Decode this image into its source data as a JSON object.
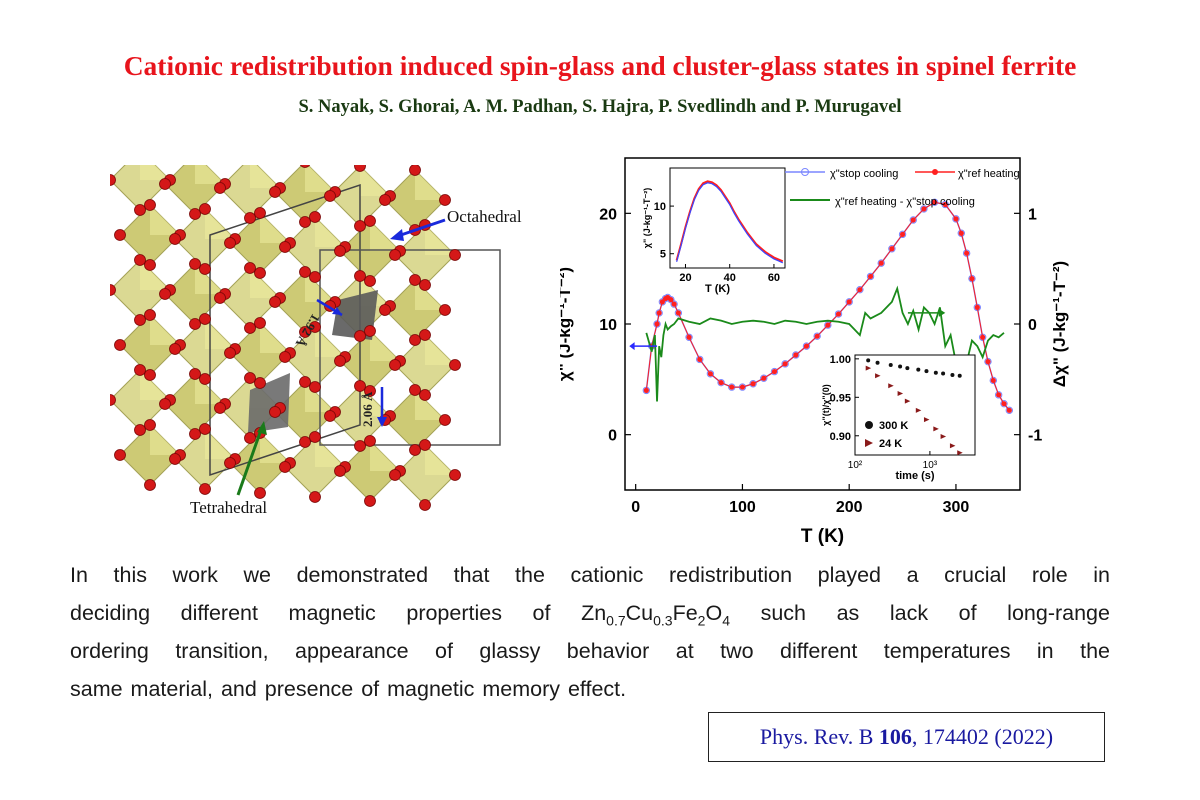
{
  "title": "Cationic redistribution induced spin-glass and cluster-glass states in spinel ferrite",
  "authors": "S. Nayak, S. Ghorai, A. M. Padhan, S. Hajra, P. Svedlindh and P. Murugavel",
  "figure": {
    "structure": {
      "octahedral_label": "Octahedral",
      "tetrahedral_label": "Tetrahedral",
      "bond1": "1.92 Å",
      "bond2": "2.06 Å"
    }
  },
  "chart_data": {
    "type": "line",
    "xlabel": "T (K)",
    "ylabel": "χ\" (J-kg⁻¹-T⁻²)",
    "y2label": "Δχ\" (J-kg⁻¹-T⁻²)",
    "x_ticks": [
      "0",
      "100",
      "200",
      "300"
    ],
    "y_ticks": [
      "0",
      "10",
      "20"
    ],
    "y2_ticks": [
      "-1",
      "0",
      "1"
    ],
    "xlim": [
      -10,
      360
    ],
    "ylim": [
      -5,
      25
    ],
    "y2lim": [
      -1.5,
      1.5
    ],
    "legend": [
      "χ\"stop cooling",
      "χ\"ref heating",
      "χ\"ref heating - χ\"stop cooling"
    ],
    "legend_placement": "top-right",
    "colors": {
      "stop_cooling": "#7a86ff",
      "ref_heating": "#ff2020",
      "difference": "#1a8a1a"
    },
    "series": [
      {
        "name": "χ\"stop cooling",
        "axis": "left",
        "x": [
          10,
          15,
          20,
          22,
          25,
          28,
          30,
          33,
          36,
          40,
          50,
          60,
          70,
          80,
          90,
          100,
          110,
          120,
          130,
          140,
          150,
          160,
          170,
          180,
          190,
          200,
          210,
          220,
          230,
          240,
          250,
          260,
          270,
          280,
          290,
          300,
          305,
          310,
          315,
          320,
          325,
          330,
          335,
          340,
          345,
          350
        ],
        "y": [
          4,
          8,
          10,
          11,
          12,
          12.3,
          12.4,
          12.2,
          11.8,
          11,
          8.8,
          6.8,
          5.5,
          4.7,
          4.3,
          4.3,
          4.6,
          5.1,
          5.7,
          6.4,
          7.2,
          8,
          8.9,
          9.9,
          10.9,
          12,
          13.1,
          14.3,
          15.5,
          16.8,
          18.1,
          19.4,
          20.4,
          21,
          20.8,
          19.5,
          18.2,
          16.4,
          14.1,
          11.5,
          8.8,
          6.6,
          4.9,
          3.6,
          2.8,
          2.2
        ]
      },
      {
        "name": "χ\"ref heating",
        "axis": "left",
        "x": [
          10,
          15,
          20,
          22,
          25,
          28,
          30,
          33,
          36,
          40,
          50,
          60,
          70,
          80,
          90,
          100,
          110,
          120,
          130,
          140,
          150,
          160,
          170,
          180,
          190,
          200,
          210,
          220,
          230,
          240,
          250,
          260,
          270,
          280,
          290,
          300,
          305,
          310,
          315,
          320,
          325,
          330,
          335,
          340,
          345,
          350
        ],
        "y": [
          4,
          8,
          10,
          11,
          12,
          12.3,
          12.4,
          12.2,
          11.8,
          11,
          8.8,
          6.8,
          5.5,
          4.7,
          4.3,
          4.3,
          4.6,
          5.1,
          5.7,
          6.4,
          7.2,
          8,
          8.9,
          9.9,
          10.9,
          12,
          13.1,
          14.3,
          15.5,
          16.8,
          18.1,
          19.4,
          20.4,
          21,
          20.8,
          19.5,
          18.2,
          16.4,
          14.1,
          11.5,
          8.8,
          6.6,
          4.9,
          3.6,
          2.8,
          2.2
        ]
      },
      {
        "name": "χ\"ref heating - χ\"stop cooling",
        "axis": "right",
        "x": [
          10,
          15,
          18,
          20,
          22,
          24,
          26,
          28,
          30,
          33,
          36,
          40,
          50,
          60,
          70,
          80,
          90,
          100,
          110,
          120,
          130,
          140,
          150,
          160,
          170,
          180,
          190,
          200,
          205,
          210,
          215,
          220,
          230,
          240,
          245,
          250,
          255,
          260,
          265,
          270,
          275,
          280,
          285,
          290,
          295,
          300,
          305,
          310,
          315,
          320,
          325,
          330,
          335,
          340,
          345
        ],
        "y": [
          -0.08,
          -0.25,
          -0.1,
          -0.7,
          -0.2,
          -0.3,
          -0.1,
          0.0,
          -0.05,
          -0.02,
          0.0,
          0.05,
          0.02,
          0.0,
          0.05,
          0.03,
          0.0,
          0.02,
          0.03,
          0.02,
          0.0,
          0.03,
          0.02,
          0.0,
          0.02,
          0.03,
          0.02,
          0.0,
          -0.05,
          -0.1,
          0.1,
          0.05,
          0.1,
          0.2,
          0.32,
          0.1,
          0.0,
          0.12,
          -0.05,
          0.15,
          0.1,
          0.0,
          0.15,
          -0.2,
          -0.1,
          -0.35,
          -0.4,
          -0.35,
          -0.15,
          -0.2,
          -0.3,
          -0.15,
          -0.1,
          -0.12,
          -0.08
        ]
      }
    ],
    "insets": [
      {
        "position": "top-left",
        "xlabel": "T (K)",
        "ylabel": "χ\" (J-kg⁻¹-T⁻²)",
        "x_ticks": [
          "20",
          "40",
          "60"
        ],
        "y_ticks": [
          "5",
          "10"
        ],
        "xlim": [
          13,
          65
        ],
        "ylim": [
          3.5,
          14
        ],
        "x": [
          16,
          18,
          20,
          22,
          24,
          26,
          28,
          30,
          32,
          34,
          36,
          38,
          40,
          42,
          44,
          46,
          48,
          50,
          52,
          54,
          56,
          58,
          60,
          62,
          64
        ],
        "y": [
          4.3,
          6,
          7.8,
          9.4,
          10.8,
          11.8,
          12.4,
          12.6,
          12.5,
          12.2,
          11.7,
          11,
          10.3,
          9.4,
          8.6,
          7.9,
          7.2,
          6.6,
          6,
          5.6,
          5.2,
          4.9,
          4.6,
          4.4,
          4.2
        ]
      },
      {
        "position": "bottom-right",
        "xlabel": "time (s)",
        "ylabel": "χ\"(t)/χ\"(0)",
        "x_ticks": [
          "10²",
          "10³"
        ],
        "y_ticks": [
          "0.90",
          "0.95",
          "1.00"
        ],
        "log_x": true,
        "xlim": [
          100,
          4000
        ],
        "ylim": [
          0.875,
          1.005
        ],
        "series": [
          {
            "name": "300 K",
            "x": [
              150,
              200,
              300,
              400,
              500,
              700,
              900,
              1200,
              1500,
              2000,
              2500
            ],
            "y": [
              0.998,
              0.995,
              0.992,
              0.99,
              0.988,
              0.986,
              0.984,
              0.982,
              0.981,
              0.979,
              0.978
            ]
          },
          {
            "name": "24 K",
            "x": [
              150,
              200,
              300,
              400,
              500,
              700,
              900,
              1200,
              1500,
              2000,
              2500
            ],
            "y": [
              0.988,
              0.978,
              0.965,
              0.955,
              0.945,
              0.933,
              0.921,
              0.909,
              0.899,
              0.887,
              0.878
            ]
          }
        ]
      }
    ]
  },
  "abstract": {
    "line1": "In this work we demonstrated that the cationic redistribution played a crucial role in",
    "line2_pre": "deciding different magnetic properties of",
    "formula": {
      "zn": "Zn",
      "zn_sub": "0.7",
      "cu": "Cu",
      "cu_sub": "0.3",
      "fe": "Fe",
      "fe_sub": "2",
      "o": "O",
      "o_sub": "4"
    },
    "line2_post": "such as lack of long-range",
    "line3": "ordering transition, appearance of glassy behavior at two different temperatures in the",
    "line4": "same material, and presence of magnetic memory effect."
  },
  "citation": {
    "journal": "Phys. Rev. B",
    "volume": "106",
    "rest": ", 174402 (2022)"
  }
}
